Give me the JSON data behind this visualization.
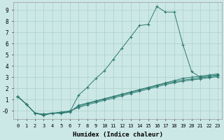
{
  "xlabel": "Humidex (Indice chaleur)",
  "ylabel": "",
  "background_color": "#cce8e6",
  "grid_color": "#aacfcc",
  "line_color": "#2d7a70",
  "xlim": [
    -0.5,
    23.5
  ],
  "ylim": [
    -0.7,
    9.7
  ],
  "xticks": [
    0,
    1,
    2,
    3,
    4,
    5,
    6,
    7,
    8,
    9,
    10,
    11,
    12,
    13,
    14,
    15,
    16,
    17,
    18,
    19,
    20,
    21,
    22,
    23
  ],
  "yticks": [
    0,
    1,
    2,
    3,
    4,
    5,
    6,
    7,
    8,
    9
  ],
  "ytick_labels": [
    "-0",
    "1",
    "2",
    "3",
    "4",
    "5",
    "6",
    "7",
    "8",
    "9"
  ],
  "series": [
    {
      "x": [
        0,
        1,
        2,
        3,
        4,
        5,
        6,
        7,
        8,
        9,
        10,
        11,
        12,
        13,
        14,
        15,
        16,
        17,
        18,
        19,
        20,
        21,
        22,
        23
      ],
      "y": [
        1.3,
        0.6,
        -0.2,
        -0.4,
        -0.2,
        -0.2,
        -0.1,
        1.4,
        2.1,
        2.9,
        3.6,
        4.6,
        5.6,
        6.6,
        7.6,
        7.7,
        9.3,
        8.8,
        8.8,
        5.9,
        3.5,
        3.0,
        3.1,
        3.2
      ]
    },
    {
      "x": [
        0,
        1,
        2,
        3,
        4,
        5,
        6,
        7,
        8,
        9,
        10,
        11,
        12,
        13,
        14,
        15,
        16,
        17,
        18,
        19,
        20,
        21,
        22,
        23
      ],
      "y": [
        1.3,
        0.6,
        -0.2,
        -0.3,
        -0.2,
        -0.2,
        -0.1,
        0.5,
        0.7,
        0.9,
        1.1,
        1.3,
        1.5,
        1.7,
        1.9,
        2.1,
        2.3,
        2.5,
        2.7,
        2.9,
        3.0,
        3.1,
        3.2,
        3.3
      ]
    },
    {
      "x": [
        0,
        1,
        2,
        3,
        4,
        5,
        6,
        7,
        8,
        9,
        10,
        11,
        12,
        13,
        14,
        15,
        16,
        17,
        18,
        19,
        20,
        21,
        22,
        23
      ],
      "y": [
        1.3,
        0.6,
        -0.2,
        -0.3,
        -0.2,
        -0.15,
        -0.05,
        0.4,
        0.65,
        0.85,
        1.05,
        1.25,
        1.45,
        1.65,
        1.85,
        2.05,
        2.25,
        2.45,
        2.6,
        2.75,
        2.85,
        2.95,
        3.05,
        3.15
      ]
    },
    {
      "x": [
        0,
        1,
        2,
        3,
        4,
        5,
        6,
        7,
        8,
        9,
        10,
        11,
        12,
        13,
        14,
        15,
        16,
        17,
        18,
        19,
        20,
        21,
        22,
        23
      ],
      "y": [
        1.3,
        0.6,
        -0.2,
        -0.3,
        -0.2,
        -0.1,
        0.0,
        0.3,
        0.55,
        0.75,
        0.95,
        1.15,
        1.35,
        1.55,
        1.75,
        1.95,
        2.15,
        2.35,
        2.5,
        2.65,
        2.75,
        2.85,
        2.95,
        3.05
      ]
    }
  ]
}
